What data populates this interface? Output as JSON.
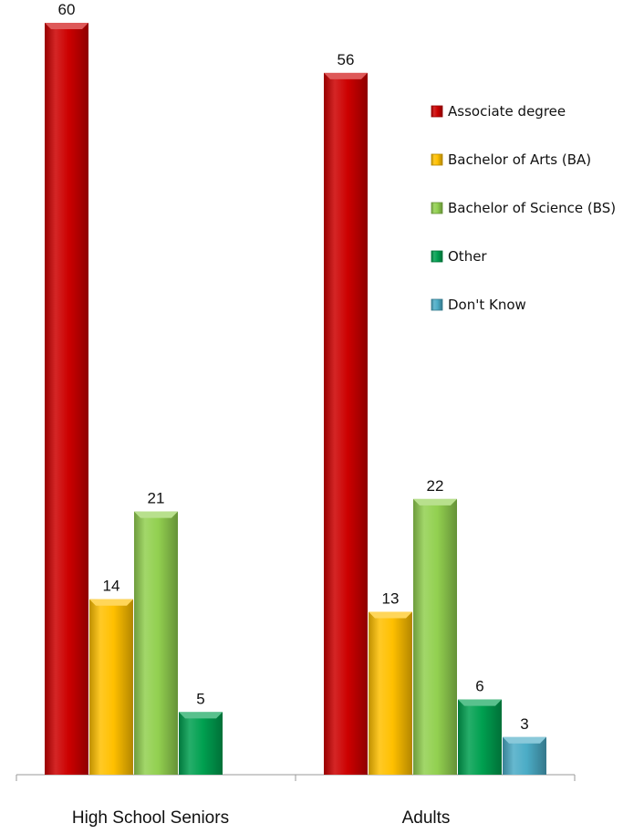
{
  "chart_data": {
    "type": "bar",
    "categories": [
      "High School Seniors",
      "Adults"
    ],
    "series": [
      {
        "name": "Associate degree",
        "values": [
          60,
          56
        ],
        "color": "#cc0000"
      },
      {
        "name": "Bachelor of Arts (BA)",
        "values": [
          14,
          13
        ],
        "color": "#ffc000"
      },
      {
        "name": "Bachelor of Science (BS)",
        "values": [
          21,
          22
        ],
        "color": "#92d050"
      },
      {
        "name": "Other",
        "values": [
          5,
          6
        ],
        "color": "#00a050"
      },
      {
        "name": "Don't Know",
        "values": [
          null,
          3
        ],
        "color": "#4bacc6"
      }
    ],
    "value_labels": [
      [
        "60",
        "14",
        "21",
        "5",
        ""
      ],
      [
        "56",
        "13",
        "22",
        "6",
        "3"
      ]
    ],
    "ylim": [
      0,
      60
    ],
    "grid": false,
    "legend_position": "right"
  }
}
